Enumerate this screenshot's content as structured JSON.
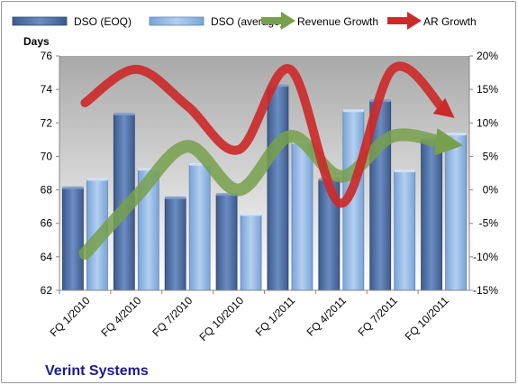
{
  "chart_data": {
    "type": "bar",
    "title": "",
    "company_label": "Verint Systems",
    "ylabel": "Days",
    "categories": [
      "FQ 1/2010",
      "FQ 4/2010",
      "FQ 7/2010",
      "FQ 10/2010",
      "FQ 1/2011",
      "FQ 4/2011",
      "FQ 7/2011",
      "FQ 10/2011"
    ],
    "ylim": [
      62,
      76
    ],
    "yticks": [
      62,
      64,
      66,
      68,
      70,
      72,
      74,
      76
    ],
    "y2lim": [
      -15,
      20
    ],
    "y2ticks": [
      "-15%",
      "-10%",
      "-5%",
      "0%",
      "5%",
      "10%",
      "15%",
      "20%"
    ],
    "y2tick_values": [
      -15,
      -10,
      -5,
      0,
      5,
      10,
      15,
      20
    ],
    "grid": false,
    "legend_position": "top",
    "series": [
      {
        "name": "DSO (EOQ)",
        "kind": "bar",
        "axis": "left",
        "color": "#4a6a9c",
        "values": [
          68.1,
          72.5,
          67.5,
          67.7,
          74.2,
          68.6,
          73.3,
          71.0
        ]
      },
      {
        "name": "DSO (average)",
        "kind": "bar",
        "axis": "left",
        "color": "#8fb4e0",
        "values": [
          68.6,
          69.2,
          69.5,
          66.5,
          70.8,
          72.7,
          69.1,
          71.3
        ]
      },
      {
        "name": "Revenue Growth",
        "kind": "line",
        "axis": "right",
        "color": "#77a04c",
        "values": [
          -9.5,
          -1.0,
          6.5,
          0.0,
          8.0,
          2.0,
          8.0,
          7.0
        ]
      },
      {
        "name": "AR Growth",
        "kind": "line",
        "axis": "right",
        "color": "#cc2a2a",
        "values": [
          13.0,
          18.0,
          12.5,
          6.0,
          18.0,
          -2.0,
          18.0,
          12.0
        ]
      }
    ]
  }
}
